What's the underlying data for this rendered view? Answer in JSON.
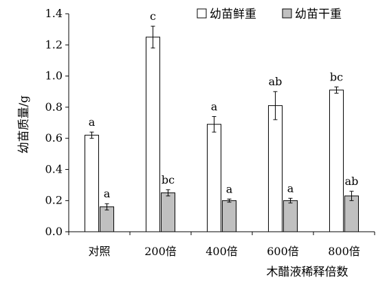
{
  "chart_data": {
    "type": "bar",
    "categories": [
      "对照",
      "200倍",
      "400倍",
      "600倍",
      "800倍"
    ],
    "series": [
      {
        "name": "幼苗鲜重",
        "values": [
          0.62,
          1.25,
          0.69,
          0.81,
          0.91
        ],
        "errors": [
          0.02,
          0.07,
          0.05,
          0.09,
          0.02
        ],
        "labels": [
          "a",
          "c",
          "a",
          "ab",
          "bc"
        ],
        "fill": "#ffffff"
      },
      {
        "name": "幼苗干重",
        "values": [
          0.16,
          0.25,
          0.2,
          0.2,
          0.23
        ],
        "errors": [
          0.02,
          0.02,
          0.01,
          0.015,
          0.03
        ],
        "labels": [
          "a",
          "bc",
          "a",
          "a",
          "ab"
        ],
        "fill": "#c0c0c0"
      }
    ],
    "xlabel": "木醋液稀释倍数",
    "ylabel": "幼苗质量/g",
    "ylim": [
      0,
      1.4
    ],
    "yticks": [
      "0.0",
      "0.2",
      "0.4",
      "0.6",
      "0.8",
      "1.0",
      "1.2",
      "1.4"
    ],
    "legend_position": "top-right",
    "grid": false
  }
}
